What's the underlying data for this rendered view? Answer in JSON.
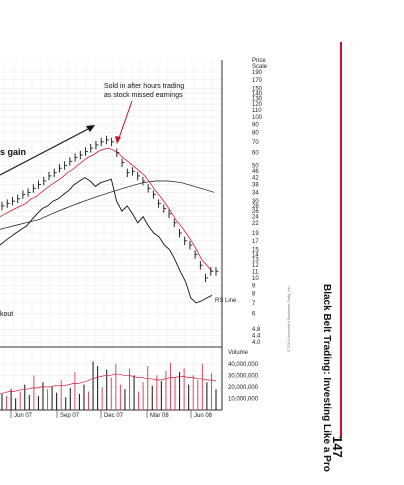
{
  "book": {
    "running_head": "Black Belt Trading: Investing Like a Pro",
    "page_number": "147",
    "copyright": "© 2014 Investor's Business Daily, Inc."
  },
  "colors": {
    "accent_rule": "#c8102e",
    "moving_avg_red": "#d41f3a",
    "volume_red": "#e04a5f",
    "line_black": "#111111",
    "grid": "#d6d6d6"
  },
  "chart_data": {
    "type": "line",
    "annotations": {
      "sold_note_line1": "Sold in after hours trading",
      "sold_note_line2": "as stock missed earnings",
      "gain_fragment": "s gain",
      "breakout_fragment": "kout",
      "rs_line_label": "RS Line"
    },
    "price_scale": {
      "title_line1": "Price",
      "title_line2": "Scale",
      "ticks": [
        "190",
        "170",
        "150",
        "140",
        "130",
        "120",
        "110",
        "100",
        "90",
        "80",
        "70",
        "60",
        "50",
        "46",
        "42",
        "38",
        "34",
        "30",
        "28",
        "26",
        "24",
        "22",
        "19",
        "17",
        "15",
        "14",
        "13",
        "12",
        "11",
        "10",
        "9",
        "8",
        "7",
        "6",
        "4.8",
        "4.4",
        "4.0"
      ]
    },
    "volume_scale": {
      "title": "Volume",
      "ticks": [
        "40,000,000",
        "30,000,000",
        "20,000,000",
        "10,000,000"
      ]
    },
    "x_labels": [
      "Jun 07",
      "Sep 07",
      "Dec 07",
      "Mar 08",
      "Jun 08"
    ],
    "price_series": [
      28,
      29,
      30,
      31,
      33,
      34,
      36,
      38,
      40,
      43,
      45,
      48,
      50,
      53,
      56,
      58,
      61,
      64,
      67,
      70,
      72,
      70,
      60,
      52,
      45,
      46,
      43,
      40,
      36,
      33,
      29,
      27,
      25,
      22,
      19,
      17,
      16,
      14,
      12,
      10,
      11,
      11
    ],
    "moving_avg_short": [
      24,
      25,
      26,
      27,
      28,
      29,
      31,
      32,
      34,
      36,
      38,
      40,
      42,
      45,
      47,
      50,
      53,
      56,
      58,
      61,
      63,
      64,
      62,
      59,
      55,
      52,
      49,
      46,
      43,
      39,
      35,
      32,
      29,
      26,
      23,
      21,
      19,
      17,
      15,
      13,
      12,
      11
    ],
    "moving_avg_long": [
      20,
      20.5,
      21,
      21.5,
      22,
      22.5,
      23,
      24,
      25,
      26,
      27,
      28,
      29,
      30,
      31,
      32,
      33,
      34,
      35,
      36,
      37,
      38,
      39,
      39.5,
      40,
      40,
      40,
      39.5,
      39,
      38,
      37,
      36,
      35,
      34
    ],
    "rs_line": [
      16,
      17,
      18,
      19,
      20,
      21,
      23,
      25,
      27,
      28,
      30,
      31,
      33,
      35,
      38,
      40,
      42,
      40,
      37,
      39,
      40,
      41,
      30,
      26,
      28,
      25,
      22,
      24,
      21,
      19,
      18,
      16,
      15,
      13,
      11,
      9.5,
      7.5,
      7,
      7.2,
      7.5,
      7.8
    ],
    "volume": [
      14,
      12,
      18,
      10,
      16,
      22,
      13,
      30,
      12,
      24,
      18,
      20,
      15,
      26,
      11,
      19,
      33,
      14,
      22,
      16,
      42,
      38,
      20,
      35,
      28,
      40,
      22,
      18,
      36,
      30,
      16,
      24,
      38,
      21,
      30,
      25,
      34,
      41,
      28,
      33,
      36,
      22,
      30,
      26,
      40,
      24,
      32,
      18
    ],
    "volume_avg": [
      14,
      15,
      16,
      16,
      17,
      18,
      18,
      19,
      19,
      20,
      20,
      20,
      21,
      21,
      21,
      22,
      23,
      23,
      24,
      25,
      27,
      28,
      29,
      30,
      30,
      31,
      31,
      30,
      30,
      29,
      28,
      28,
      27,
      27,
      26,
      26,
      27,
      28,
      28,
      29,
      29,
      28,
      28,
      27,
      27,
      26,
      26,
      25
    ]
  }
}
